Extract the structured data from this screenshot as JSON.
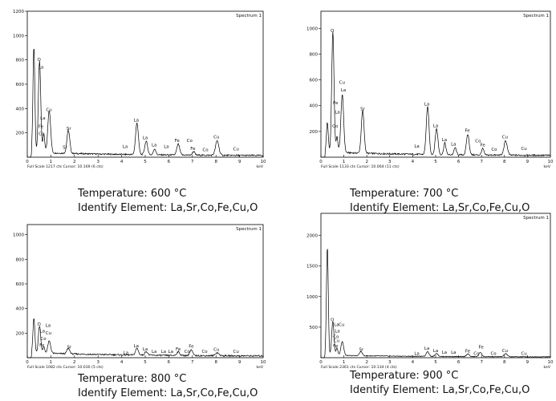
{
  "chart_data": [
    {
      "type": "line",
      "title": "Spectrum 1",
      "footer_left": "Full Scale 1217 cts Cursor: 10.169 (6 cts)",
      "xlabel": "keV",
      "xlim": [
        0,
        10
      ],
      "ylim": [
        0,
        1200
      ],
      "yticks": [
        200,
        400,
        600,
        800,
        1000,
        1200
      ],
      "ytick_labels": [
        "200",
        "400",
        "600",
        "800",
        "1000",
        "1200"
      ],
      "xticks": [
        0,
        1,
        2,
        3,
        4,
        5,
        6,
        7,
        8,
        9,
        10
      ],
      "peaks": [
        {
          "x": 0.28,
          "y": 870,
          "w": 0.04
        },
        {
          "x": 0.52,
          "y": 760,
          "w": 0.05
        },
        {
          "x": 0.7,
          "y": 150,
          "w": 0.04
        },
        {
          "x": 0.93,
          "y": 350,
          "w": 0.06
        },
        {
          "x": 1.74,
          "y": 190,
          "w": 0.06
        },
        {
          "x": 4.65,
          "y": 260,
          "w": 0.06
        },
        {
          "x": 5.04,
          "y": 110,
          "w": 0.06
        },
        {
          "x": 5.4,
          "y": 50,
          "w": 0.05
        },
        {
          "x": 6.4,
          "y": 90,
          "w": 0.06
        },
        {
          "x": 7.05,
          "y": 30,
          "w": 0.05
        },
        {
          "x": 8.05,
          "y": 120,
          "w": 0.07
        }
      ],
      "labels": [
        {
          "text": "O",
          "x": 0.5,
          "y": 790
        },
        {
          "text": "La",
          "x": 0.58,
          "y": 730
        },
        {
          "text": "Cu",
          "x": 0.92,
          "y": 380
        },
        {
          "text": "La",
          "x": 0.66,
          "y": 310
        },
        {
          "text": "Fe",
          "x": 0.58,
          "y": 240
        },
        {
          "text": "Co",
          "x": 0.6,
          "y": 180
        },
        {
          "text": "Sr",
          "x": 1.6,
          "y": 70
        },
        {
          "text": "Sr",
          "x": 1.76,
          "y": 225
        },
        {
          "text": "La",
          "x": 4.15,
          "y": 75
        },
        {
          "text": "La",
          "x": 4.62,
          "y": 295
        },
        {
          "text": "La",
          "x": 5.0,
          "y": 150
        },
        {
          "text": "La",
          "x": 5.38,
          "y": 90
        },
        {
          "text": "La",
          "x": 5.9,
          "y": 75
        },
        {
          "text": "Fe",
          "x": 6.35,
          "y": 125
        },
        {
          "text": "Co",
          "x": 6.88,
          "y": 125
        },
        {
          "text": "Fe",
          "x": 7.02,
          "y": 60
        },
        {
          "text": "Co",
          "x": 7.55,
          "y": 50
        },
        {
          "text": "Cu",
          "x": 8.02,
          "y": 155
        },
        {
          "text": "Cu",
          "x": 8.85,
          "y": 55
        }
      ]
    },
    {
      "type": "line",
      "title": "Spectrum 1",
      "footer_left": "Full Scale 1133 cts Cursor: 10.064 (11 cts)",
      "xlabel": "keV",
      "xlim": [
        0,
        10
      ],
      "ylim": [
        0,
        1133
      ],
      "yticks": [
        200,
        400,
        600,
        800,
        1000
      ],
      "ytick_labels": [
        "200",
        "400",
        "600",
        "800",
        "1000"
      ],
      "xticks": [
        0,
        1,
        2,
        3,
        4,
        5,
        6,
        7,
        8,
        9,
        10
      ],
      "peaks": [
        {
          "x": 0.28,
          "y": 230,
          "w": 0.04
        },
        {
          "x": 0.52,
          "y": 940,
          "w": 0.05
        },
        {
          "x": 0.7,
          "y": 120,
          "w": 0.04
        },
        {
          "x": 0.93,
          "y": 450,
          "w": 0.06
        },
        {
          "x": 1.82,
          "y": 330,
          "w": 0.06
        },
        {
          "x": 4.65,
          "y": 370,
          "w": 0.06
        },
        {
          "x": 5.04,
          "y": 200,
          "w": 0.06
        },
        {
          "x": 5.4,
          "y": 90,
          "w": 0.05
        },
        {
          "x": 5.85,
          "y": 55,
          "w": 0.05
        },
        {
          "x": 6.4,
          "y": 160,
          "w": 0.06
        },
        {
          "x": 7.05,
          "y": 50,
          "w": 0.05
        },
        {
          "x": 8.05,
          "y": 110,
          "w": 0.07
        }
      ],
      "labels": [
        {
          "text": "O",
          "x": 0.5,
          "y": 970
        },
        {
          "text": "Cu",
          "x": 0.92,
          "y": 570
        },
        {
          "text": "La",
          "x": 0.98,
          "y": 510
        },
        {
          "text": "Fe",
          "x": 0.64,
          "y": 410
        },
        {
          "text": "La",
          "x": 0.72,
          "y": 340
        },
        {
          "text": "Co",
          "x": 0.62,
          "y": 230
        },
        {
          "text": "Sr",
          "x": 1.82,
          "y": 365
        },
        {
          "text": "La",
          "x": 4.18,
          "y": 75
        },
        {
          "text": "La",
          "x": 4.62,
          "y": 400
        },
        {
          "text": "La",
          "x": 5.0,
          "y": 235
        },
        {
          "text": "La",
          "x": 5.38,
          "y": 125
        },
        {
          "text": "La",
          "x": 5.78,
          "y": 90
        },
        {
          "text": "Fe",
          "x": 6.38,
          "y": 195
        },
        {
          "text": "Co",
          "x": 6.85,
          "y": 115
        },
        {
          "text": "Fe",
          "x": 7.05,
          "y": 85
        },
        {
          "text": "Co",
          "x": 7.55,
          "y": 50
        },
        {
          "text": "Cu",
          "x": 8.02,
          "y": 145
        },
        {
          "text": "Cu",
          "x": 8.85,
          "y": 55
        }
      ]
    },
    {
      "type": "line",
      "title": "Spectrum 1",
      "footer_left": "Full Scale 1082 cts Cursor: 10.030 (5 cts)",
      "xlabel": "keV",
      "xlim": [
        0,
        10
      ],
      "ylim": [
        0,
        1082
      ],
      "yticks": [
        200,
        400,
        600,
        800,
        1000
      ],
      "ytick_labels": [
        "200",
        "400",
        "600",
        "800",
        "1000"
      ],
      "xticks": [
        0,
        1,
        2,
        3,
        4,
        5,
        6,
        7,
        8,
        9,
        10
      ],
      "peaks": [
        {
          "x": 0.28,
          "y": 280,
          "w": 0.04
        },
        {
          "x": 0.52,
          "y": 220,
          "w": 0.05
        },
        {
          "x": 0.7,
          "y": 50,
          "w": 0.04
        },
        {
          "x": 0.93,
          "y": 100,
          "w": 0.06
        },
        {
          "x": 1.74,
          "y": 45,
          "w": 0.06
        },
        {
          "x": 4.65,
          "y": 55,
          "w": 0.06
        },
        {
          "x": 5.04,
          "y": 30,
          "w": 0.06
        },
        {
          "x": 6.4,
          "y": 30,
          "w": 0.06
        },
        {
          "x": 6.95,
          "y": 45,
          "w": 0.06
        },
        {
          "x": 8.05,
          "y": 25,
          "w": 0.07
        }
      ],
      "labels": [
        {
          "text": "O",
          "x": 0.5,
          "y": 260
        },
        {
          "text": "La",
          "x": 0.88,
          "y": 250
        },
        {
          "text": "La",
          "x": 0.64,
          "y": 205
        },
        {
          "text": "Cu",
          "x": 0.9,
          "y": 190
        },
        {
          "text": "Co",
          "x": 0.68,
          "y": 145
        },
        {
          "text": "Fe",
          "x": 0.62,
          "y": 90
        },
        {
          "text": "Sr",
          "x": 1.78,
          "y": 75
        },
        {
          "text": "La",
          "x": 4.18,
          "y": 30
        },
        {
          "text": "La",
          "x": 4.62,
          "y": 85
        },
        {
          "text": "La",
          "x": 5.0,
          "y": 60
        },
        {
          "text": "La",
          "x": 5.38,
          "y": 40
        },
        {
          "text": "La",
          "x": 5.78,
          "y": 40
        },
        {
          "text": "La",
          "x": 6.08,
          "y": 40
        },
        {
          "text": "Fe",
          "x": 6.4,
          "y": 60
        },
        {
          "text": "Fe",
          "x": 6.95,
          "y": 80
        },
        {
          "text": "Co",
          "x": 6.78,
          "y": 40
        },
        {
          "text": "Co",
          "x": 7.52,
          "y": 40
        },
        {
          "text": "Cu",
          "x": 8.02,
          "y": 55
        },
        {
          "text": "Cu",
          "x": 8.85,
          "y": 40
        }
      ]
    },
    {
      "type": "line",
      "title": "Spectrum 1",
      "footer_left": "Full Scale 2361 cts Cursor: 10.134 (4 cts)",
      "xlabel": "keV",
      "xlim": [
        0,
        10
      ],
      "ylim": [
        0,
        2361
      ],
      "yticks": [
        500,
        1000,
        1500,
        2000
      ],
      "ytick_labels": [
        "500",
        "1000",
        "1500",
        "2000"
      ],
      "xticks": [
        0,
        1,
        2,
        3,
        4,
        5,
        6,
        7,
        8,
        9,
        10
      ],
      "peaks": [
        {
          "x": 0.28,
          "y": 1780,
          "w": 0.04
        },
        {
          "x": 0.52,
          "y": 560,
          "w": 0.05
        },
        {
          "x": 0.7,
          "y": 120,
          "w": 0.04
        },
        {
          "x": 0.93,
          "y": 230,
          "w": 0.06
        },
        {
          "x": 1.74,
          "y": 70,
          "w": 0.06
        },
        {
          "x": 4.65,
          "y": 80,
          "w": 0.06
        },
        {
          "x": 5.04,
          "y": 50,
          "w": 0.06
        },
        {
          "x": 6.4,
          "y": 45,
          "w": 0.06
        },
        {
          "x": 6.95,
          "y": 70,
          "w": 0.06
        },
        {
          "x": 8.05,
          "y": 50,
          "w": 0.07
        }
      ],
      "labels": [
        {
          "text": "O",
          "x": 0.5,
          "y": 600
        },
        {
          "text": "La",
          "x": 0.68,
          "y": 520
        },
        {
          "text": "Cu",
          "x": 0.9,
          "y": 520
        },
        {
          "text": "La",
          "x": 0.72,
          "y": 410
        },
        {
          "text": "Co",
          "x": 0.66,
          "y": 320
        },
        {
          "text": "Cu",
          "x": 0.68,
          "y": 255
        },
        {
          "text": "Fe",
          "x": 0.64,
          "y": 170
        },
        {
          "text": "Sr",
          "x": 1.76,
          "y": 110
        },
        {
          "text": "La",
          "x": 4.18,
          "y": 45
        },
        {
          "text": "La",
          "x": 4.62,
          "y": 130
        },
        {
          "text": "La",
          "x": 5.0,
          "y": 95
        },
        {
          "text": "La",
          "x": 5.38,
          "y": 65
        },
        {
          "text": "La",
          "x": 5.78,
          "y": 65
        },
        {
          "text": "Fe",
          "x": 6.4,
          "y": 85
        },
        {
          "text": "Co",
          "x": 6.78,
          "y": 45
        },
        {
          "text": "Fe",
          "x": 6.98,
          "y": 150
        },
        {
          "text": "Co",
          "x": 7.52,
          "y": 45
        },
        {
          "text": "Cu",
          "x": 8.02,
          "y": 90
        },
        {
          "text": "Cu",
          "x": 8.85,
          "y": 45
        }
      ]
    }
  ],
  "captions": [
    {
      "temp": "Temperature: 600 °C",
      "elements": "Identify Element: La,Sr,Co,Fe,Cu,O"
    },
    {
      "temp": "Temperature: 700 °C",
      "elements": "Identify Element: La,Sr,Co,Fe,Cu,O"
    },
    {
      "temp": "Temperature: 800 °C",
      "elements": "Identify Element: La,Sr,Co,Fe,Cu,O"
    },
    {
      "temp": "Temperature: 900 °C",
      "elements": "Identify Element: La,Sr,Co,Fe,Cu,O"
    }
  ],
  "colors": {
    "line": "#000000",
    "frame": "#000000",
    "text": "#111111"
  }
}
